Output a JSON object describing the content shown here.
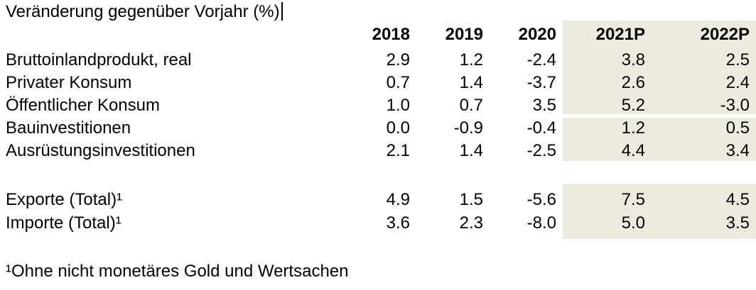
{
  "title": "Veränderung gegenüber Vorjahr (%)",
  "table": {
    "column_headers": [
      "2018",
      "2019",
      "2020",
      "2021P",
      "2022P"
    ],
    "row_groups": [
      {
        "rows": [
          {
            "label": "Bruttoinlandprodukt, real",
            "values": [
              "2.9",
              "1.2",
              "-2.4",
              "3.8",
              "2.5"
            ]
          },
          {
            "label": "Privater Konsum",
            "values": [
              "0.7",
              "1.4",
              "-3.7",
              "2.6",
              "2.4"
            ]
          },
          {
            "label": "Öffentlicher Konsum",
            "values": [
              "1.0",
              "0.7",
              "3.5",
              "5.2",
              "-3.0"
            ]
          },
          {
            "label": "Bauinvestitionen",
            "values": [
              "0.0",
              "-0.9",
              "-0.4",
              "1.2",
              "0.5"
            ]
          },
          {
            "label": "Ausrüstungsinvestitionen",
            "values": [
              "2.1",
              "1.4",
              "-2.5",
              "4.4",
              "3.4"
            ]
          }
        ]
      },
      {
        "rows": [
          {
            "label": "Exporte (Total)¹",
            "values": [
              "4.9",
              "1.5",
              "-5.6",
              "7.5",
              "4.5"
            ]
          },
          {
            "label": "Importe (Total)¹",
            "values": [
              "3.6",
              "2.3",
              "-8.0",
              "5.0",
              "3.5"
            ]
          }
        ]
      }
    ],
    "highlight": {
      "columns": [
        "2021P",
        "2022P"
      ],
      "color": "#edebe0"
    }
  },
  "footnote": "¹Ohne nicht monetäres Gold und Wertsachen",
  "colors": {
    "background": "#ffffff",
    "text": "#000000",
    "highlight_bg": "#edebe0"
  }
}
